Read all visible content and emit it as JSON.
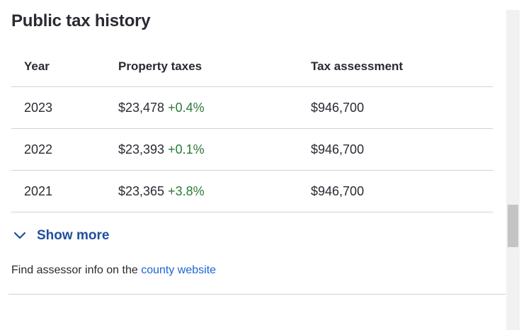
{
  "section": {
    "title": "Public tax history"
  },
  "table": {
    "headers": {
      "year": "Year",
      "property_taxes": "Property taxes",
      "tax_assessment": "Tax assessment"
    },
    "rows": [
      {
        "year": "2023",
        "tax": "$23,478",
        "change": "+0.4%",
        "assessment": "$946,700"
      },
      {
        "year": "2022",
        "tax": "$23,393",
        "change": "+0.1%",
        "assessment": "$946,700"
      },
      {
        "year": "2021",
        "tax": "$23,365",
        "change": "+3.8%",
        "assessment": "$946,700"
      }
    ]
  },
  "show_more": {
    "label": "Show more",
    "icon": "chevron-down-icon"
  },
  "assessor": {
    "text": "Find assessor info on the ",
    "link_text": "county website"
  },
  "colors": {
    "positive_change": "#2d7a3a",
    "link": "#1a66d6",
    "show_more": "#1f4f9e"
  }
}
